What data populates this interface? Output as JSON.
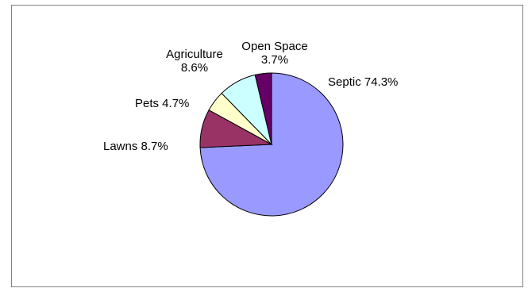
{
  "chart_data": {
    "type": "pie",
    "title": "",
    "slices": [
      {
        "name": "Septic",
        "value": 74.3,
        "label_lines": [
          "Septic 74.3%"
        ],
        "color": "#9999FF"
      },
      {
        "name": "Lawns",
        "value": 8.7,
        "label_lines": [
          "Lawns 8.7%"
        ],
        "color": "#993366"
      },
      {
        "name": "Pets",
        "value": 4.7,
        "label_lines": [
          "Pets 4.7%"
        ],
        "color": "#FFFFCC"
      },
      {
        "name": "Agriculture",
        "value": 8.6,
        "label_lines": [
          "Agriculture",
          "8.6%"
        ],
        "color": "#CCFFFF"
      },
      {
        "name": "Open Space",
        "value": 3.7,
        "label_lines": [
          "Open Space",
          "3.7%"
        ],
        "color": "#660066"
      }
    ],
    "legend": "none",
    "start_angle_deg": 0,
    "direction": "clockwise"
  }
}
